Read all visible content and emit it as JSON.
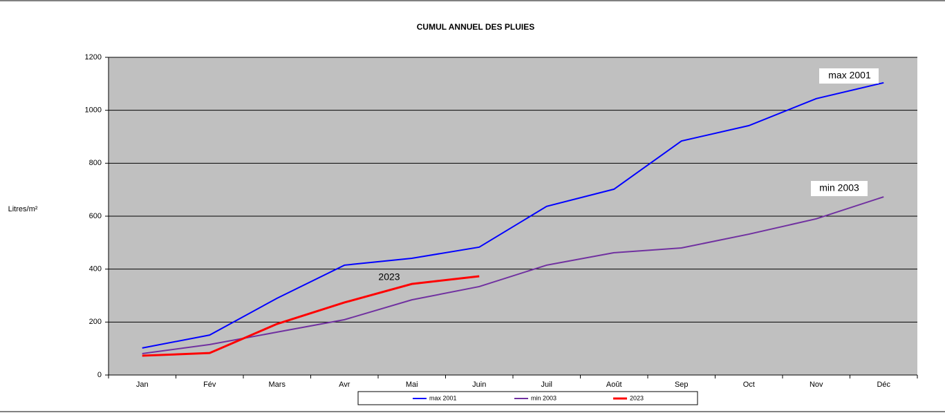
{
  "chart_data": {
    "type": "line",
    "title": "CUMUL ANNUEL DES PLUIES",
    "y_label": "Litres/m²",
    "categories": [
      "Jan",
      "Fév",
      "Mars",
      "Avr",
      "Mai",
      "Juin",
      "Juil",
      "Août",
      "Sep",
      "Oct",
      "Nov",
      "Déc"
    ],
    "series": [
      {
        "name": "max 2001",
        "color": "#0000ff",
        "width": 2,
        "values": [
          102,
          151,
          290,
          415,
          441,
          483,
          637,
          702,
          884,
          942,
          1044,
          1104
        ]
      },
      {
        "name": "min 2003",
        "color": "#7030a0",
        "width": 2,
        "values": [
          81,
          115,
          162,
          209,
          284,
          334,
          415,
          462,
          480,
          532,
          590,
          673
        ]
      },
      {
        "name": "2023",
        "color": "#ff0000",
        "width": 3,
        "values": [
          73,
          83,
          193,
          274,
          344,
          373,
          null,
          null,
          null,
          null,
          null,
          null
        ]
      }
    ],
    "annotations": [
      {
        "text": "max 2001",
        "color": "#1f3864"
      },
      {
        "text": "min 2003",
        "color": "#000000"
      },
      {
        "text": "2023",
        "color": "#ff0000"
      }
    ],
    "ylim": [
      0,
      1200
    ],
    "yticks": [
      0,
      200,
      400,
      600,
      800,
      1000,
      1200
    ],
    "grid": true,
    "plot_background": "#c0c0c0",
    "legend": "bottom"
  }
}
